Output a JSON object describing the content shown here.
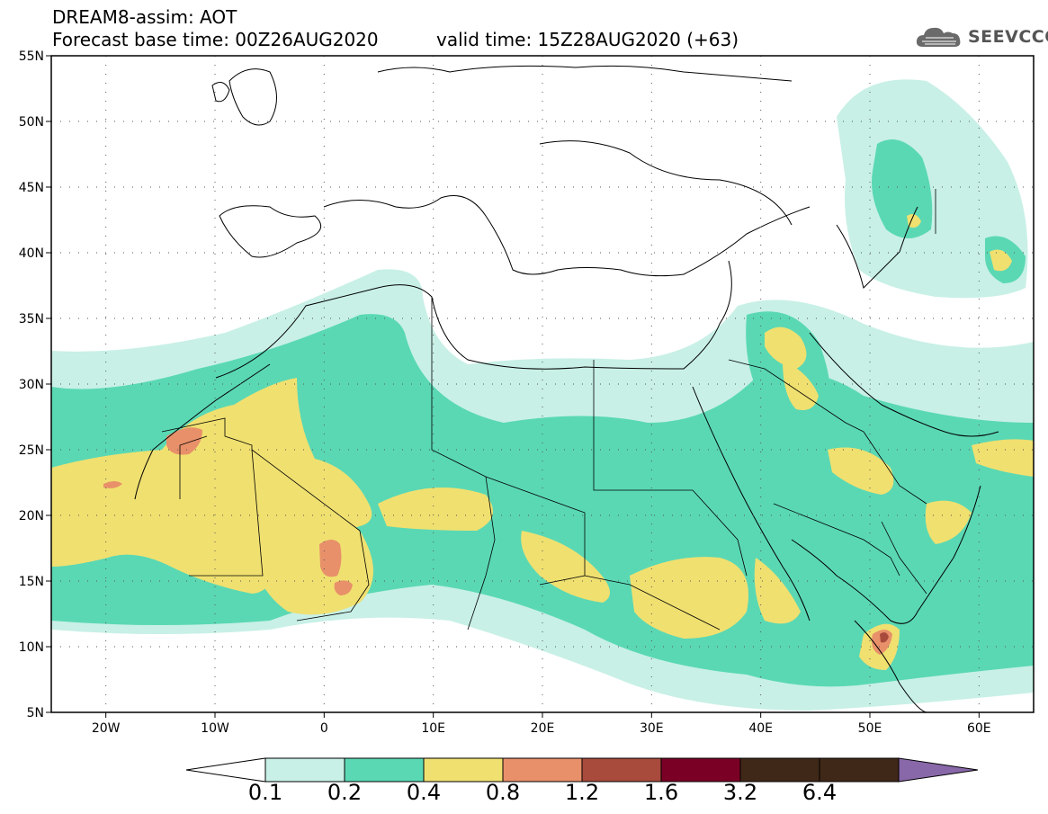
{
  "header": {
    "title_line1": "DREAM8-assim: AOT",
    "title_line2": "Forecast base time: 00Z26AUG2020",
    "valid_time": "valid time: 15Z28AUG2020 (+63)",
    "logo_text": "SEEVCCC",
    "logo_icon": "cloud-icon"
  },
  "map": {
    "projection": "lat-lon",
    "lon_range": [
      -25,
      65
    ],
    "lat_range": [
      5,
      55
    ],
    "grid": "dotted",
    "lat_labels": [
      "55N",
      "50N",
      "45N",
      "40N",
      "35N",
      "30N",
      "25N",
      "20N",
      "15N",
      "10N",
      "5N"
    ],
    "lat_values": [
      55,
      50,
      45,
      40,
      35,
      30,
      25,
      20,
      15,
      10,
      5
    ],
    "lon_labels": [
      "20W",
      "10W",
      "0",
      "10E",
      "20E",
      "30E",
      "40E",
      "50E",
      "60E"
    ],
    "lon_values": [
      -20,
      -10,
      0,
      10,
      20,
      30,
      40,
      50,
      60
    ]
  },
  "legend": {
    "labels": [
      "0.1",
      "0.2",
      "0.4",
      "0.8",
      "1.2",
      "1.6",
      "3.2",
      "6.4"
    ],
    "colors": [
      "#ffffff",
      "#c8f0e6",
      "#5ad8b4",
      "#f0e070",
      "#e8906a",
      "#a84a3c",
      "#7a0026",
      "#402818",
      "#8868a8"
    ]
  }
}
